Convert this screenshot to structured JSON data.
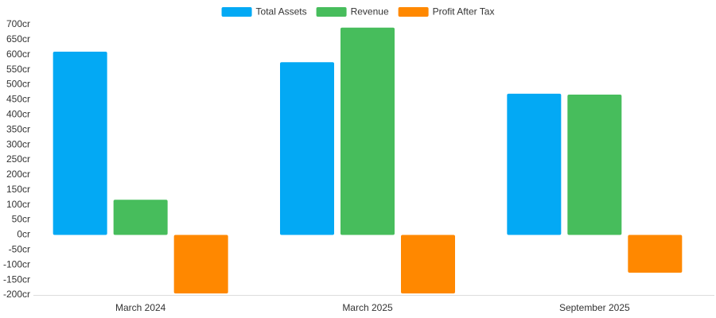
{
  "chart_data": {
    "type": "bar",
    "categories": [
      "March 2024",
      "March 2025",
      "September 2025"
    ],
    "series": [
      {
        "name": "Total Assets",
        "color": "#03a9f4",
        "values": [
          610,
          575,
          470
        ]
      },
      {
        "name": "Revenue",
        "color": "#47bd5c",
        "values": [
          117,
          690,
          467
        ]
      },
      {
        "name": "Profit After Tax",
        "color": "#ff8800",
        "values": [
          -195,
          -195,
          -126
        ]
      }
    ],
    "ylim": [
      -200,
      700
    ],
    "yticks": [
      {
        "value": -200,
        "label": "-200cr"
      },
      {
        "value": -150,
        "label": "-150cr"
      },
      {
        "value": -100,
        "label": "-100cr"
      },
      {
        "value": -50,
        "label": "-50cr"
      },
      {
        "value": 0,
        "label": "0cr"
      },
      {
        "value": 50,
        "label": "50cr"
      },
      {
        "value": 100,
        "label": "100cr"
      },
      {
        "value": 150,
        "label": "150cr"
      },
      {
        "value": 200,
        "label": "200cr"
      },
      {
        "value": 250,
        "label": "250cr"
      },
      {
        "value": 300,
        "label": "300cr"
      },
      {
        "value": 350,
        "label": "350cr"
      },
      {
        "value": 400,
        "label": "400cr"
      },
      {
        "value": 450,
        "label": "450cr"
      },
      {
        "value": 500,
        "label": "500cr"
      },
      {
        "value": 550,
        "label": "550cr"
      },
      {
        "value": 600,
        "label": "600cr"
      },
      {
        "value": 650,
        "label": "650cr"
      },
      {
        "value": 700,
        "label": "700cr"
      }
    ],
    "grid": false,
    "legend": "top"
  }
}
